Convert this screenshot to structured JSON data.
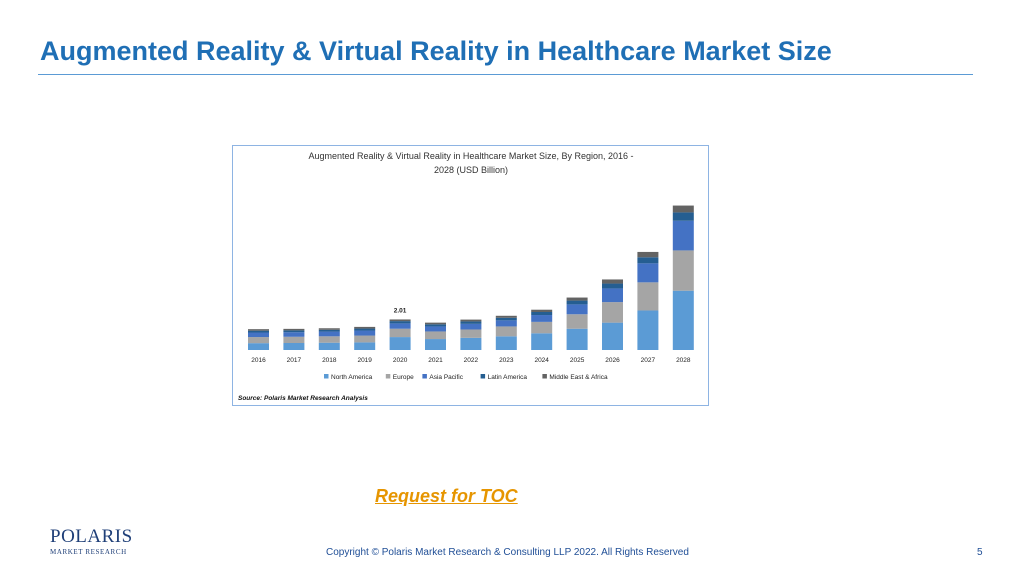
{
  "slide": {
    "title": "Augmented Reality & Virtual Reality in Healthcare Market Size",
    "toc_link": "Request for TOC",
    "copyright": "Copyright © Polaris Market Research & Consulting LLP 2022. All Rights Reserved",
    "page_number": "5",
    "logo": {
      "word": "POLARIS",
      "sub": "MARKET RESEARCH"
    }
  },
  "chart_data": {
    "type": "bar",
    "stacked": true,
    "title_lines": [
      "Augmented Reality & Virtual Reality in Healthcare Market Size, By Region, 2016 -",
      "2028 (USD Billion)"
    ],
    "categories": [
      "2016",
      "2017",
      "2018",
      "2019",
      "2020",
      "2021",
      "2022",
      "2023",
      "2024",
      "2025",
      "2026",
      "2027",
      "2028"
    ],
    "series": [
      {
        "name": "North America",
        "color": "#5b9bd5",
        "values": [
          0.45,
          0.46,
          0.48,
          0.5,
          0.85,
          0.72,
          0.8,
          0.9,
          1.1,
          1.4,
          1.8,
          2.6,
          3.9
        ]
      },
      {
        "name": "Europe",
        "color": "#a5a5a5",
        "values": [
          0.4,
          0.41,
          0.42,
          0.45,
          0.55,
          0.5,
          0.55,
          0.65,
          0.75,
          0.95,
          1.35,
          1.85,
          2.65
        ]
      },
      {
        "name": "Asia Pacific",
        "color": "#4472c4",
        "values": [
          0.3,
          0.3,
          0.31,
          0.33,
          0.35,
          0.33,
          0.37,
          0.4,
          0.45,
          0.65,
          0.9,
          1.25,
          1.95
        ]
      },
      {
        "name": "Latin America",
        "color": "#255e91",
        "values": [
          0.12,
          0.12,
          0.12,
          0.13,
          0.15,
          0.14,
          0.16,
          0.17,
          0.2,
          0.25,
          0.32,
          0.4,
          0.55
        ]
      },
      {
        "name": "Middle East & Africa",
        "color": "#636363",
        "values": [
          0.1,
          0.1,
          0.1,
          0.11,
          0.11,
          0.11,
          0.12,
          0.13,
          0.15,
          0.2,
          0.27,
          0.35,
          0.45
        ]
      }
    ],
    "data_labels": [
      {
        "category": "2020",
        "text": "2.01"
      }
    ],
    "ylim": [
      0,
      9.8
    ],
    "legend_position": "bottom",
    "grid": false,
    "source": "Source: Polaris  Market Research Analysis"
  }
}
